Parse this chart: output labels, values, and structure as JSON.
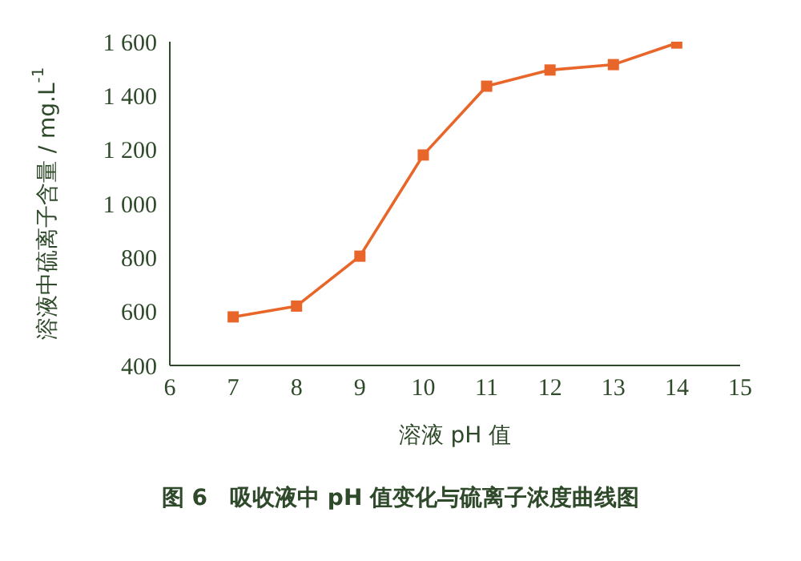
{
  "chart_data": {
    "type": "line",
    "title": "图 6　吸收液中 pH 值变化与硫离子浓度曲线图",
    "xlabel": "溶液 pH 值",
    "ylabel": "溶液中硫离子含量 / mg.L$^{-1}$",
    "x": [
      7,
      8,
      9,
      10,
      11,
      12,
      13,
      14
    ],
    "series": [
      {
        "color": "#e8662a",
        "values": [
          580,
          620,
          805,
          1180,
          1435,
          1495,
          1515,
          1595
        ]
      }
    ],
    "xlim": [
      6,
      15
    ],
    "xticks": [
      6,
      7,
      8,
      9,
      10,
      11,
      12,
      13,
      14,
      15
    ],
    "ylim": [
      400,
      1600
    ],
    "yticks": [
      400,
      600,
      800,
      {
        "value": 1000,
        "label": "1 000"
      },
      {
        "value": 1200,
        "label": "1 200"
      },
      {
        "value": 1400,
        "label": "1 400"
      },
      {
        "value": 1600,
        "label": "1 600"
      }
    ],
    "marker": "square",
    "line_style": "solid",
    "grid": false,
    "legend": false
  }
}
